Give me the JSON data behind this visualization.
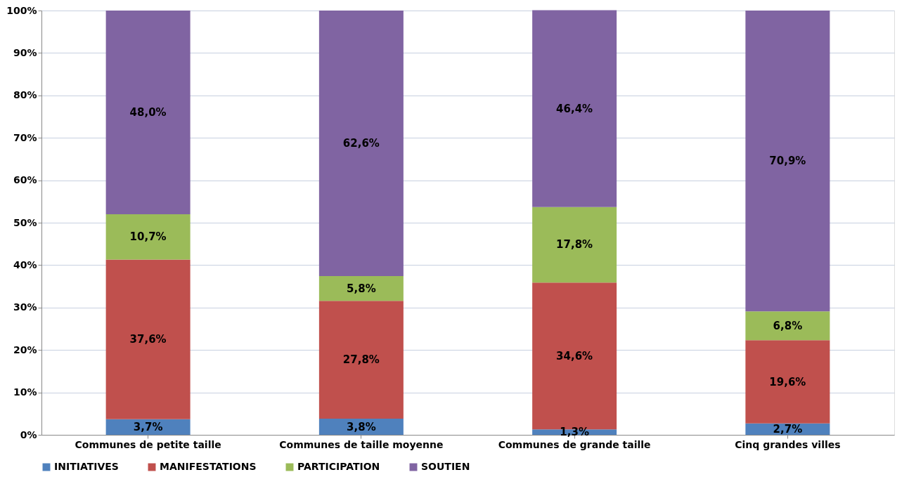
{
  "chart_data": {
    "type": "bar",
    "stacked": true,
    "categories": [
      "Communes de petite taille",
      "Communes de taille moyenne",
      "Communes de grande taille",
      "Cinq grandes villes"
    ],
    "series": [
      {
        "name": "INITIATIVES",
        "color": "#4f81bd",
        "values": [
          3.7,
          3.8,
          1.3,
          2.7
        ],
        "value_labels": [
          "3,7%",
          "3,8%",
          "1,3%",
          "2,7%"
        ]
      },
      {
        "name": "MANIFESTATIONS",
        "color": "#c0504d",
        "values": [
          37.6,
          27.8,
          34.6,
          19.6
        ],
        "value_labels": [
          "37,6%",
          "27,8%",
          "34,6%",
          "19,6%"
        ]
      },
      {
        "name": "PARTICIPATION",
        "color": "#9bbb59",
        "values": [
          10.7,
          5.8,
          17.8,
          6.8
        ],
        "value_labels": [
          "10,7%",
          "5,8%",
          "17,8%",
          "6,8%"
        ]
      },
      {
        "name": "SOUTIEN",
        "color": "#8064a2",
        "values": [
          48.0,
          62.6,
          46.4,
          70.9
        ],
        "value_labels": [
          "48,0%",
          "62,6%",
          "46,4%",
          "70,9%"
        ]
      }
    ],
    "ylim": [
      0,
      100
    ],
    "yticks": [
      {
        "value": 0,
        "label": "0%"
      },
      {
        "value": 10,
        "label": "10%"
      },
      {
        "value": 20,
        "label": "20%"
      },
      {
        "value": 30,
        "label": "30%"
      },
      {
        "value": 40,
        "label": "40%"
      },
      {
        "value": 50,
        "label": "50%"
      },
      {
        "value": 60,
        "label": "60%"
      },
      {
        "value": 70,
        "label": "70%"
      },
      {
        "value": 80,
        "label": "80%"
      },
      {
        "value": 90,
        "label": "90%"
      },
      {
        "value": 100,
        "label": "100%"
      }
    ],
    "grid": "y",
    "legend": "bottom"
  }
}
